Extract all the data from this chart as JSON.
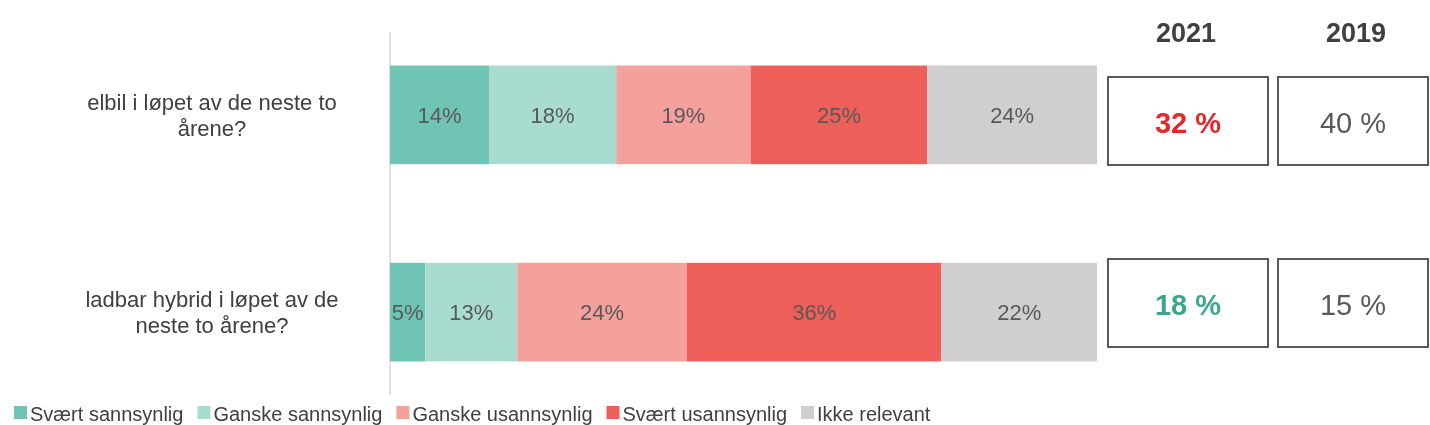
{
  "chart_data": [
    {
      "type": "bar",
      "orientation": "horizontal",
      "stacked": true,
      "legend": "bottom",
      "categories": [
        "elbil i løpet av de neste to årene?",
        "ladbar hybrid i løpet av de neste to årene?"
      ],
      "series": [
        {
          "name": "Svært sannsynlig",
          "color": "#6fc4b4",
          "values": [
            14,
            5
          ],
          "value_labels": [
            "14%",
            "5%"
          ]
        },
        {
          "name": "Ganske sannsynlig",
          "color": "#a8dcd1",
          "values": [
            18,
            13
          ],
          "value_labels": [
            "18%",
            "13%"
          ]
        },
        {
          "name": "Ganske usannsynlig",
          "color": "#f4a09c",
          "values": [
            19,
            24
          ],
          "value_labels": [
            "19%",
            "24%"
          ]
        },
        {
          "name": "Svært usannsynlig",
          "color": "#ef5f5a",
          "values": [
            25,
            36
          ],
          "value_labels": [
            "25%",
            "36%"
          ]
        },
        {
          "name": "Ikke relevant",
          "color": "#d0cecf",
          "values": [
            24,
            22
          ],
          "value_labels": [
            "24%",
            "22%"
          ]
        }
      ]
    },
    {
      "type": "other",
      "categories": [
        "2021",
        "2019"
      ],
      "series": [
        {
          "values": [
            32,
            40
          ],
          "value_labels": [
            "32 %",
            "40 %"
          ],
          "colors": [
            "#e8262b",
            "#595959"
          ]
        },
        {
          "values": [
            18,
            15
          ],
          "value_labels": [
            "18 %",
            "15 %"
          ],
          "colors": [
            "#3fa58f",
            "#595959"
          ]
        }
      ]
    }
  ]
}
